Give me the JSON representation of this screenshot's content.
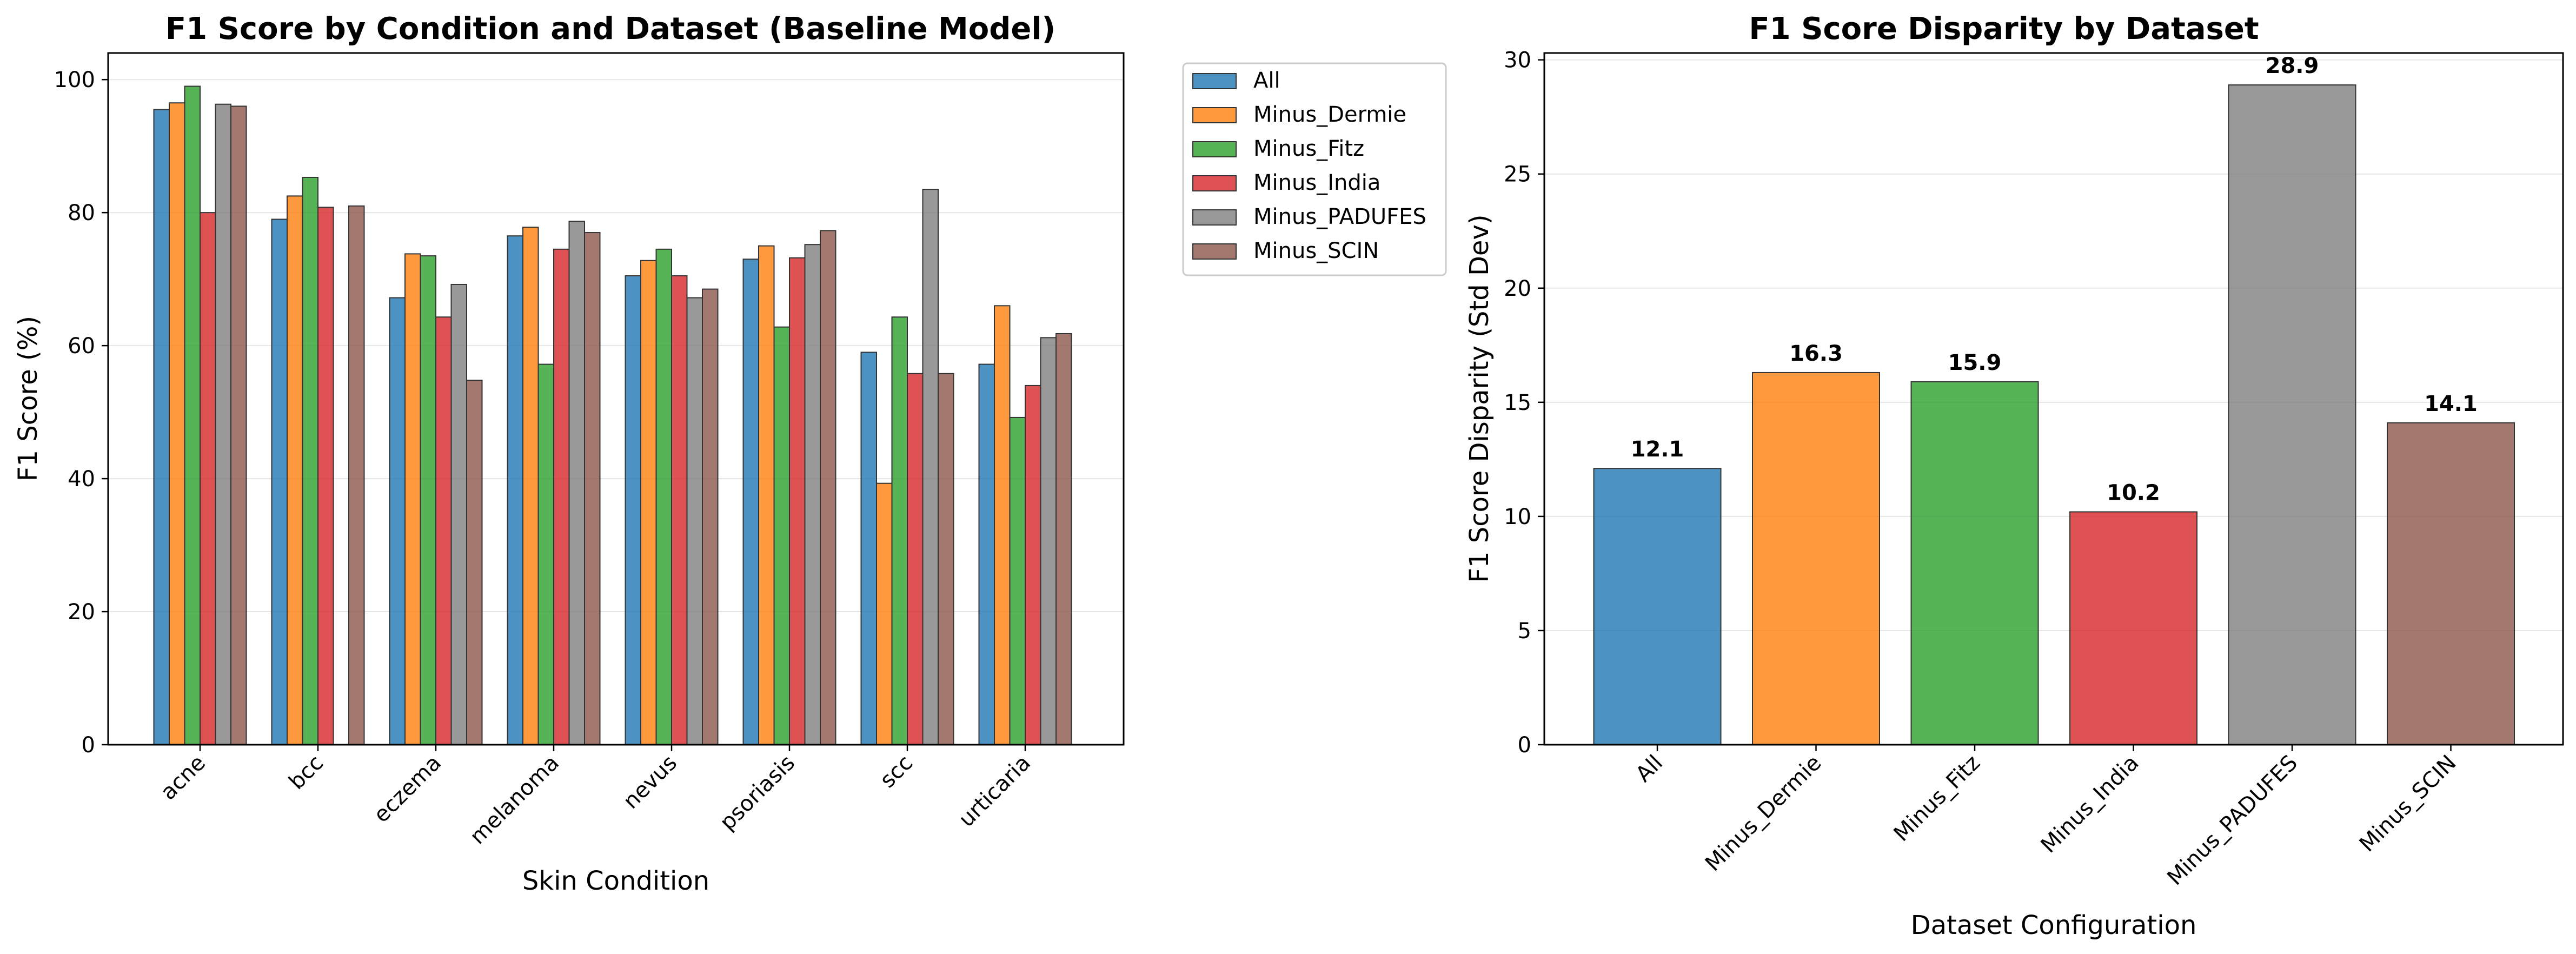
{
  "chart_data": [
    {
      "type": "bar",
      "title": "F1 Score by Condition and Dataset (Baseline Model)",
      "xlabel": "Skin Condition",
      "ylabel": "F1 Score (%)",
      "ylim": [
        0,
        104
      ],
      "yticks": [
        0,
        20,
        40,
        60,
        80,
        100
      ],
      "grid": "horizontal",
      "legend_placement": "outside top-right",
      "categories": [
        "acne",
        "bcc",
        "eczema",
        "melanoma",
        "nevus",
        "psoriasis",
        "scc",
        "urticaria"
      ],
      "series": [
        {
          "name": "All",
          "color": "#1f77b4",
          "values": [
            95.5,
            79.0,
            67.2,
            76.5,
            70.5,
            73.0,
            59.0,
            57.2
          ]
        },
        {
          "name": "Minus_Dermie",
          "color": "#ff7f0e",
          "values": [
            96.5,
            82.5,
            73.8,
            77.8,
            72.8,
            75.0,
            39.3,
            66.0
          ]
        },
        {
          "name": "Minus_Fitz",
          "color": "#2ca02c",
          "values": [
            99.0,
            85.3,
            73.5,
            57.2,
            74.5,
            62.8,
            64.3,
            49.2
          ]
        },
        {
          "name": "Minus_India",
          "color": "#d62728",
          "values": [
            80.0,
            80.8,
            64.3,
            74.5,
            70.5,
            73.2,
            55.8,
            54.0
          ]
        },
        {
          "name": "Minus_PADUFES",
          "color": "#7f7f7f",
          "values": [
            96.3,
            0,
            69.2,
            78.7,
            67.2,
            75.2,
            83.5,
            61.2
          ]
        },
        {
          "name": "Minus_SCIN",
          "color": "#8c564b",
          "values": [
            96.0,
            81.0,
            54.8,
            77.0,
            68.5,
            77.3,
            55.8,
            61.8
          ]
        }
      ]
    },
    {
      "type": "bar",
      "title": "F1 Score Disparity by Dataset",
      "xlabel": "Dataset Configuration",
      "ylabel": "F1 Score Disparity (Std Dev)",
      "ylim": [
        0,
        30.3
      ],
      "yticks": [
        0,
        5,
        10,
        15,
        20,
        25,
        30
      ],
      "grid": "horizontal",
      "categories": [
        "All",
        "Minus_Dermie",
        "Minus_Fitz",
        "Minus_India",
        "Minus_PADUFES",
        "Minus_SCIN"
      ],
      "values": [
        12.1,
        16.3,
        15.9,
        10.2,
        28.9,
        14.1
      ],
      "data_labels": [
        "12.1",
        "16.3",
        "15.9",
        "10.2",
        "28.9",
        "14.1"
      ],
      "colors": [
        "#1f77b4",
        "#ff7f0e",
        "#2ca02c",
        "#d62728",
        "#7f7f7f",
        "#8c564b"
      ]
    }
  ]
}
